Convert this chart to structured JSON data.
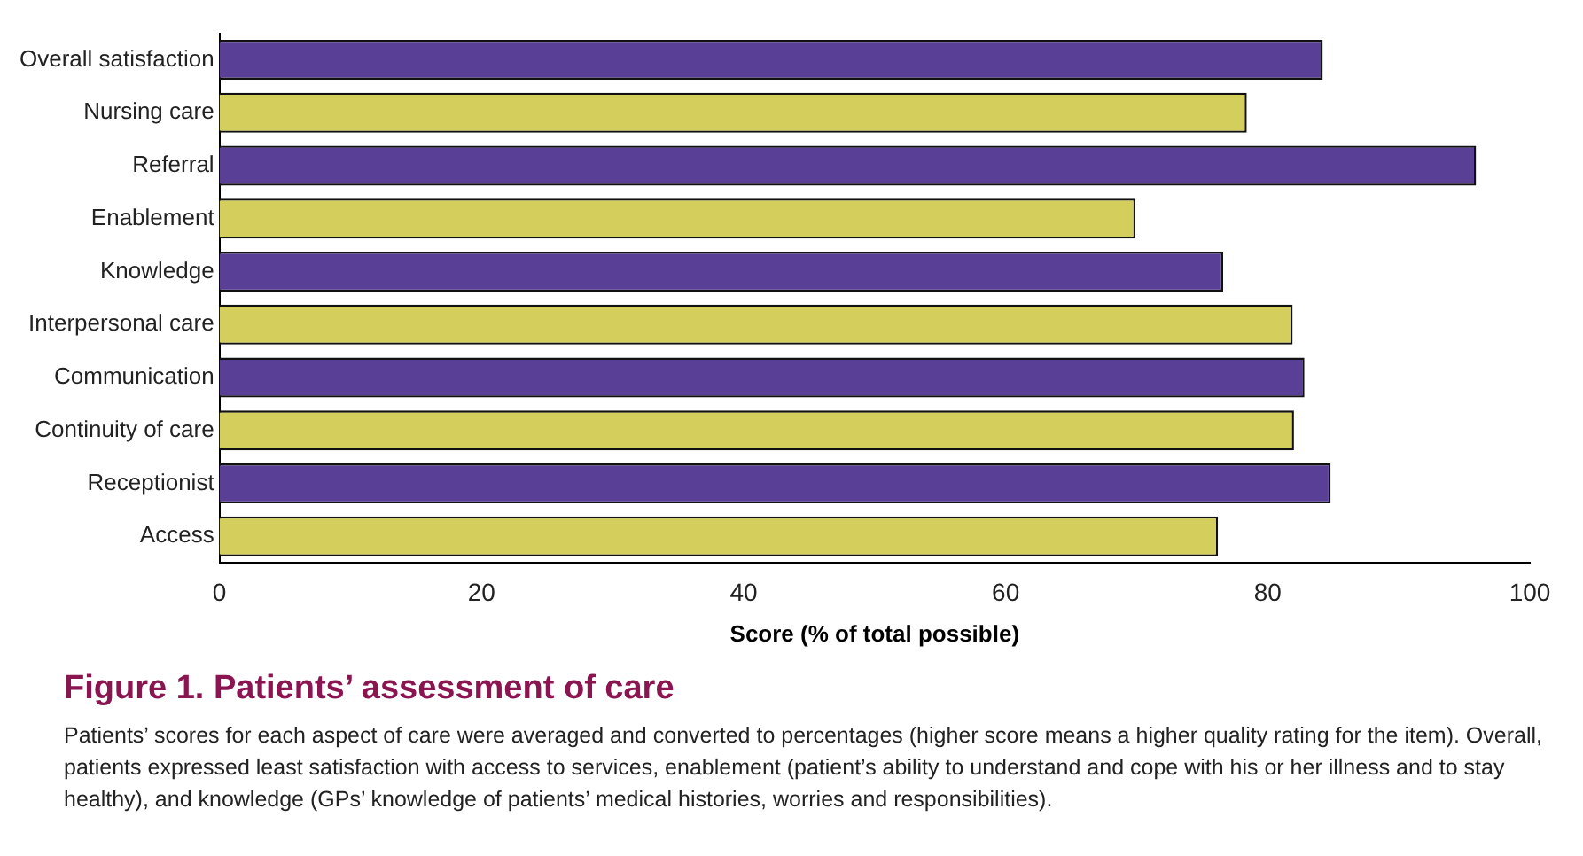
{
  "chart_data": {
    "type": "bar",
    "orientation": "horizontal",
    "title": "Figure 1. Patients’ assessment of care",
    "xlabel": "Score (% of total possible)",
    "categories": [
      "Overall satisfaction",
      "Nursing care",
      "Referral",
      "Enablement",
      "Knowledge",
      "Interpersonal care",
      "Communication",
      "Continuity of care",
      "Receptionist",
      "Access"
    ],
    "values": [
      84.2,
      78.4,
      95.9,
      69.9,
      76.6,
      81.9,
      82.8,
      82.0,
      84.8,
      76.2
    ],
    "colors": [
      "#5a3f96",
      "#d4cf5c",
      "#5a3f96",
      "#d4cf5c",
      "#5a3f96",
      "#d4cf5c",
      "#5a3f96",
      "#d4cf5c",
      "#5a3f96",
      "#d4cf5c"
    ],
    "xlim": [
      0,
      100
    ],
    "xticks": [
      0,
      20,
      40,
      60,
      80,
      100
    ],
    "grid": false,
    "legend": false,
    "annotations": [
      "Patients’ scores for each aspect of care were averaged and converted to percentages (higher score means a higher quality rating for the item). Overall, patients expressed least satisfaction with access to services, enablement (patient’s ability to understand and cope with his or her illness and to stay healthy), and knowledge (GPs’ knowledge of patients’ medical histories, worries and responsibilities)."
    ]
  }
}
